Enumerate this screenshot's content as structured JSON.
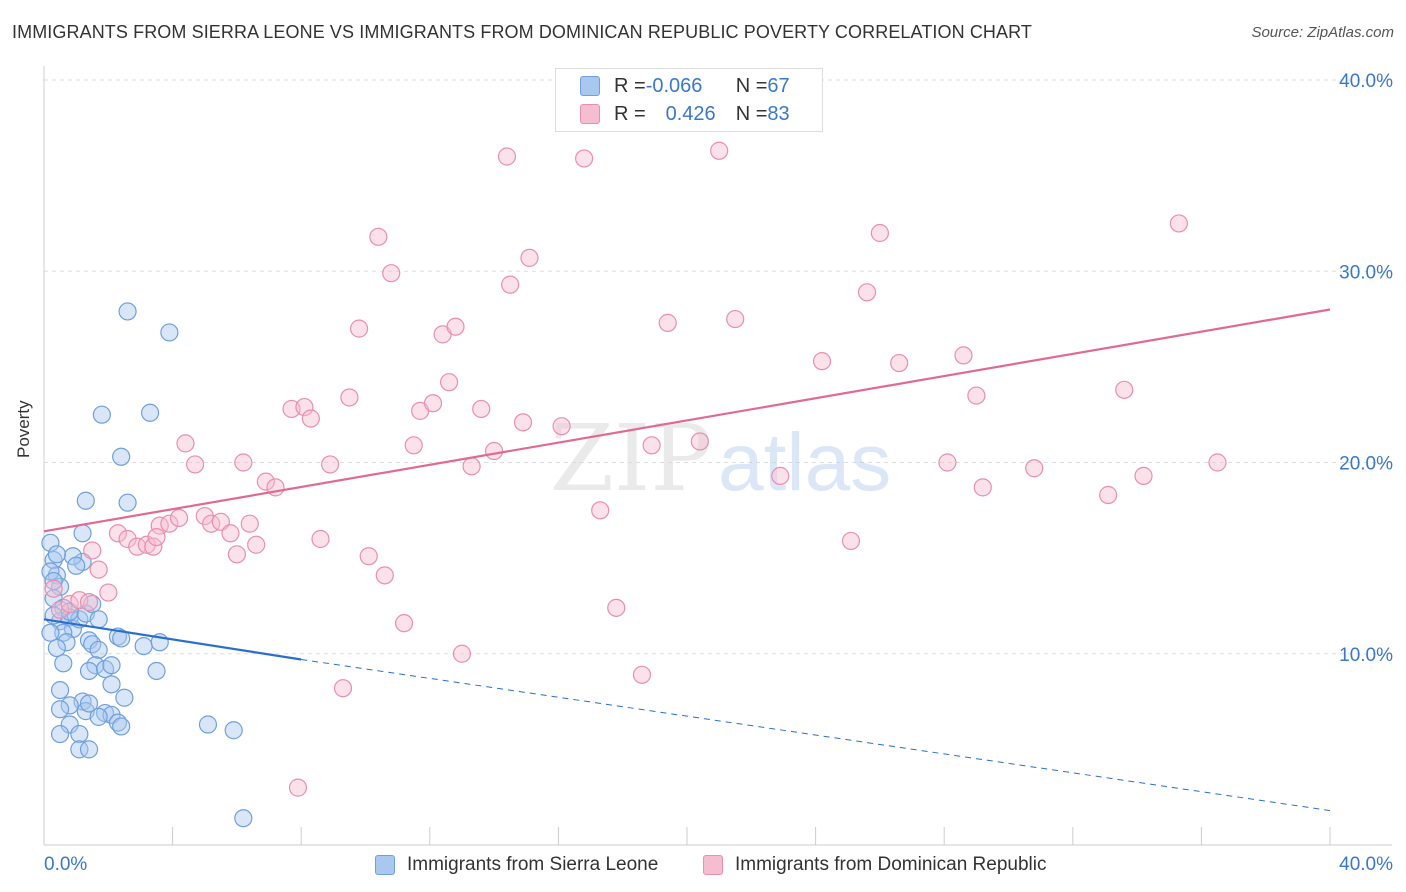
{
  "title": "IMMIGRANTS FROM SIERRA LEONE VS IMMIGRANTS FROM DOMINICAN REPUBLIC POVERTY CORRELATION CHART",
  "source": "Source: ZipAtlas.com",
  "watermark": {
    "zip": "ZIP",
    "atlas": "atlas"
  },
  "legend": {
    "rows": [
      {
        "r_label": "R = ",
        "r_value": "-0.066",
        "n_label": "N = ",
        "n_value": "67",
        "color": "#a9c8f0",
        "border": "#6fa0dc"
      },
      {
        "r_label": "R = ",
        "r_value": "0.426",
        "n_label": "N = ",
        "n_value": "83",
        "color": "#f6bcd0",
        "border": "#e98fae"
      }
    ]
  },
  "chart_data": {
    "type": "scatter",
    "title": "IMMIGRANTS FROM SIERRA LEONE VS IMMIGRANTS FROM DOMINICAN REPUBLIC POVERTY CORRELATION CHART",
    "xlabel": "",
    "ylabel": "Poverty",
    "xlim": [
      0,
      40
    ],
    "ylim": [
      0,
      40
    ],
    "x_tick_labels": [
      "0.0%",
      "40.0%"
    ],
    "y_tick_values": [
      10,
      20,
      30,
      40
    ],
    "y_tick_labels": [
      "10.0%",
      "20.0%",
      "30.0%",
      "40.0%"
    ],
    "grid": true,
    "series": [
      {
        "name": "Immigrants from Sierra Leone",
        "color": "#6fa0dc",
        "fill": "#a9c8f0",
        "trend": {
          "x0": 0,
          "y0": 11.8,
          "x1": 8,
          "y1": 9.7,
          "dash_x1": 40,
          "dash_y1": 1.8,
          "color": "#2a6fcc"
        },
        "points": [
          [
            0.2,
            15.8
          ],
          [
            0.3,
            14.9
          ],
          [
            0.4,
            14.1
          ],
          [
            0.5,
            13.5
          ],
          [
            0.3,
            12.9
          ],
          [
            0.6,
            12.4
          ],
          [
            0.8,
            11.9
          ],
          [
            0.5,
            11.7
          ],
          [
            0.9,
            11.3
          ],
          [
            1.1,
            11.8
          ],
          [
            0.6,
            11.1
          ],
          [
            1.3,
            12.1
          ],
          [
            1.5,
            12.6
          ],
          [
            1.2,
            14.8
          ],
          [
            0.9,
            15.1
          ],
          [
            1.0,
            14.6
          ],
          [
            0.4,
            15.2
          ],
          [
            0.2,
            14.3
          ],
          [
            0.3,
            13.8
          ],
          [
            1.2,
            16.3
          ],
          [
            0.7,
            10.6
          ],
          [
            1.4,
            10.7
          ],
          [
            1.5,
            10.5
          ],
          [
            0.4,
            10.3
          ],
          [
            2.3,
            10.9
          ],
          [
            2.4,
            10.8
          ],
          [
            3.1,
            10.4
          ],
          [
            3.6,
            10.6
          ],
          [
            1.7,
            10.2
          ],
          [
            1.6,
            9.4
          ],
          [
            0.6,
            9.5
          ],
          [
            1.4,
            9.1
          ],
          [
            1.9,
            9.2
          ],
          [
            2.1,
            9.4
          ],
          [
            3.5,
            9.1
          ],
          [
            2.1,
            8.4
          ],
          [
            0.5,
            8.1
          ],
          [
            2.5,
            7.7
          ],
          [
            1.2,
            7.5
          ],
          [
            0.8,
            7.3
          ],
          [
            0.5,
            7.1
          ],
          [
            1.3,
            7.0
          ],
          [
            1.9,
            6.9
          ],
          [
            2.1,
            6.8
          ],
          [
            2.3,
            6.4
          ],
          [
            0.8,
            6.3
          ],
          [
            2.4,
            6.2
          ],
          [
            5.1,
            6.3
          ],
          [
            5.9,
            6.0
          ],
          [
            1.1,
            5.8
          ],
          [
            0.5,
            5.8
          ],
          [
            1.1,
            5.0
          ],
          [
            1.4,
            5.0
          ],
          [
            1.3,
            18.0
          ],
          [
            2.6,
            17.9
          ],
          [
            2.4,
            20.3
          ],
          [
            1.8,
            22.5
          ],
          [
            3.3,
            22.6
          ],
          [
            2.6,
            27.9
          ],
          [
            3.9,
            26.8
          ],
          [
            6.2,
            1.4
          ],
          [
            0.2,
            11.1
          ],
          [
            1.7,
            11.8
          ],
          [
            0.8,
            12.2
          ],
          [
            1.7,
            6.7
          ],
          [
            1.4,
            7.4
          ],
          [
            0.3,
            12.0
          ]
        ]
      },
      {
        "name": "Immigrants from Dominican Republic",
        "color": "#e98fae",
        "fill": "#f6bcd0",
        "trend": {
          "x0": 0,
          "y0": 16.4,
          "x1": 40,
          "y1": 28.0,
          "color": "#e06a95"
        },
        "points": [
          [
            0.3,
            13.4
          ],
          [
            0.5,
            12.3
          ],
          [
            0.8,
            12.6
          ],
          [
            1.1,
            12.8
          ],
          [
            1.4,
            12.7
          ],
          [
            2.0,
            13.2
          ],
          [
            1.7,
            14.4
          ],
          [
            1.5,
            15.4
          ],
          [
            2.3,
            16.3
          ],
          [
            2.6,
            16.0
          ],
          [
            2.9,
            15.6
          ],
          [
            3.2,
            15.7
          ],
          [
            3.4,
            15.6
          ],
          [
            3.6,
            16.7
          ],
          [
            3.9,
            16.8
          ],
          [
            4.2,
            17.1
          ],
          [
            4.4,
            21.0
          ],
          [
            4.7,
            19.9
          ],
          [
            5.0,
            17.2
          ],
          [
            5.2,
            16.8
          ],
          [
            5.5,
            16.9
          ],
          [
            5.8,
            16.3
          ],
          [
            6.0,
            15.2
          ],
          [
            6.2,
            20.0
          ],
          [
            6.4,
            16.8
          ],
          [
            6.6,
            15.7
          ],
          [
            6.9,
            19.0
          ],
          [
            7.2,
            18.7
          ],
          [
            7.7,
            22.8
          ],
          [
            8.1,
            22.9
          ],
          [
            8.3,
            22.3
          ],
          [
            8.6,
            16.0
          ],
          [
            8.9,
            19.9
          ],
          [
            9.3,
            8.2
          ],
          [
            9.5,
            23.4
          ],
          [
            9.8,
            27.0
          ],
          [
            10.1,
            15.1
          ],
          [
            10.4,
            31.8
          ],
          [
            10.6,
            14.1
          ],
          [
            10.8,
            29.9
          ],
          [
            11.2,
            11.6
          ],
          [
            11.5,
            20.9
          ],
          [
            11.7,
            22.7
          ],
          [
            12.1,
            23.1
          ],
          [
            12.4,
            26.7
          ],
          [
            12.6,
            24.2
          ],
          [
            12.8,
            27.1
          ],
          [
            13.0,
            10.0
          ],
          [
            13.3,
            19.8
          ],
          [
            13.6,
            22.8
          ],
          [
            14.0,
            20.6
          ],
          [
            14.4,
            36.0
          ],
          [
            14.5,
            29.3
          ],
          [
            14.9,
            22.1
          ],
          [
            15.1,
            30.7
          ],
          [
            16.1,
            21.9
          ],
          [
            16.8,
            35.9
          ],
          [
            17.3,
            17.5
          ],
          [
            17.8,
            12.4
          ],
          [
            18.6,
            8.9
          ],
          [
            18.9,
            20.9
          ],
          [
            19.4,
            27.3
          ],
          [
            20.4,
            21.1
          ],
          [
            21.0,
            36.3
          ],
          [
            21.5,
            27.5
          ],
          [
            22.9,
            19.3
          ],
          [
            24.2,
            25.3
          ],
          [
            25.1,
            15.9
          ],
          [
            25.6,
            28.9
          ],
          [
            26.0,
            32.0
          ],
          [
            26.6,
            25.2
          ],
          [
            28.1,
            20.0
          ],
          [
            28.6,
            25.6
          ],
          [
            29.0,
            23.5
          ],
          [
            29.2,
            18.7
          ],
          [
            30.8,
            19.7
          ],
          [
            33.1,
            18.3
          ],
          [
            33.6,
            23.8
          ],
          [
            34.2,
            19.3
          ],
          [
            35.3,
            32.5
          ],
          [
            36.5,
            20.0
          ],
          [
            7.9,
            3.0
          ],
          [
            3.5,
            16.1
          ]
        ]
      }
    ]
  },
  "bottom_legend": [
    {
      "label": "Immigrants from Sierra Leone",
      "color": "#a9c8f0",
      "border": "#6fa0dc"
    },
    {
      "label": "Immigrants from Dominican Republic",
      "color": "#f6bcd0",
      "border": "#e98fae"
    }
  ]
}
